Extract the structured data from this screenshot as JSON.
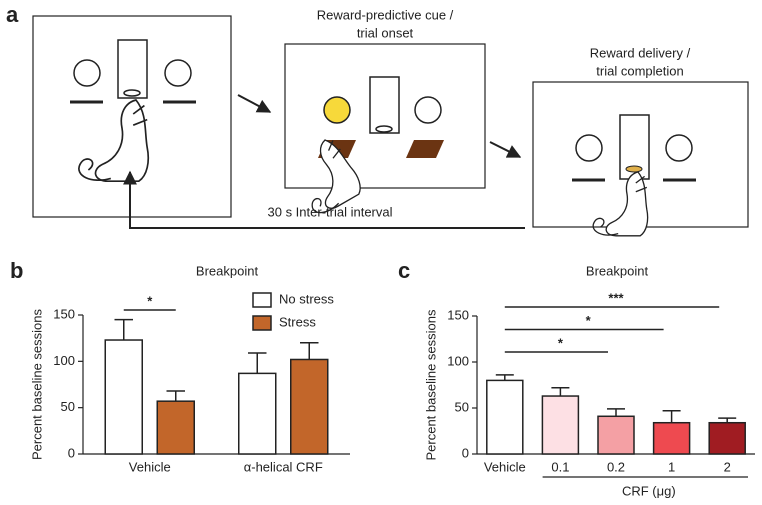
{
  "diagram": {
    "label": "a",
    "boxes": [
      {
        "title": null
      },
      {
        "title": [
          "Reward-predictive cue /",
          "trial onset"
        ]
      },
      {
        "title": [
          "Reward delivery /",
          "trial completion"
        ]
      }
    ],
    "interval": "30 s Inter-trial interval"
  },
  "chart_data": [
    {
      "label": "b",
      "type": "bar",
      "title": "Breakpoint",
      "ylabel": "Percent baseline sessions",
      "categories": [
        "Vehicle",
        "α-helical CRF"
      ],
      "series": [
        {
          "name": "No stress",
          "color": "#ffffff",
          "values": [
            123,
            87
          ],
          "errors": [
            22,
            22
          ]
        },
        {
          "name": "Stress",
          "color": "#c2662a",
          "values": [
            57,
            102
          ],
          "errors": [
            11,
            18
          ]
        }
      ],
      "comparisons": [
        {
          "from": 0,
          "to": 1,
          "label": "*"
        }
      ],
      "ylim": [
        0,
        150
      ],
      "yticks": [
        0,
        50,
        100,
        150
      ],
      "legend": "top-right"
    },
    {
      "label": "c",
      "type": "bar",
      "title": "Breakpoint",
      "ylabel": "Percent baseline sessions",
      "categories": [
        "Vehicle",
        "0.1",
        "0.2",
        "1",
        "2"
      ],
      "xlabel": "CRF (μg)",
      "values": [
        80,
        63,
        41,
        34,
        34
      ],
      "errors": [
        6,
        9,
        8,
        13,
        5
      ],
      "colors": [
        "#ffffff",
        "#fde0e4",
        "#f4a0a4",
        "#ee4a50",
        "#a01c22"
      ],
      "comparisons": [
        {
          "from": 0,
          "to": 2,
          "label": "*"
        },
        {
          "from": 0,
          "to": 3,
          "label": "*"
        },
        {
          "from": 0,
          "to": 4,
          "label": "***"
        }
      ],
      "ylim": [
        0,
        150
      ],
      "yticks": [
        0,
        50,
        100,
        150
      ]
    }
  ]
}
